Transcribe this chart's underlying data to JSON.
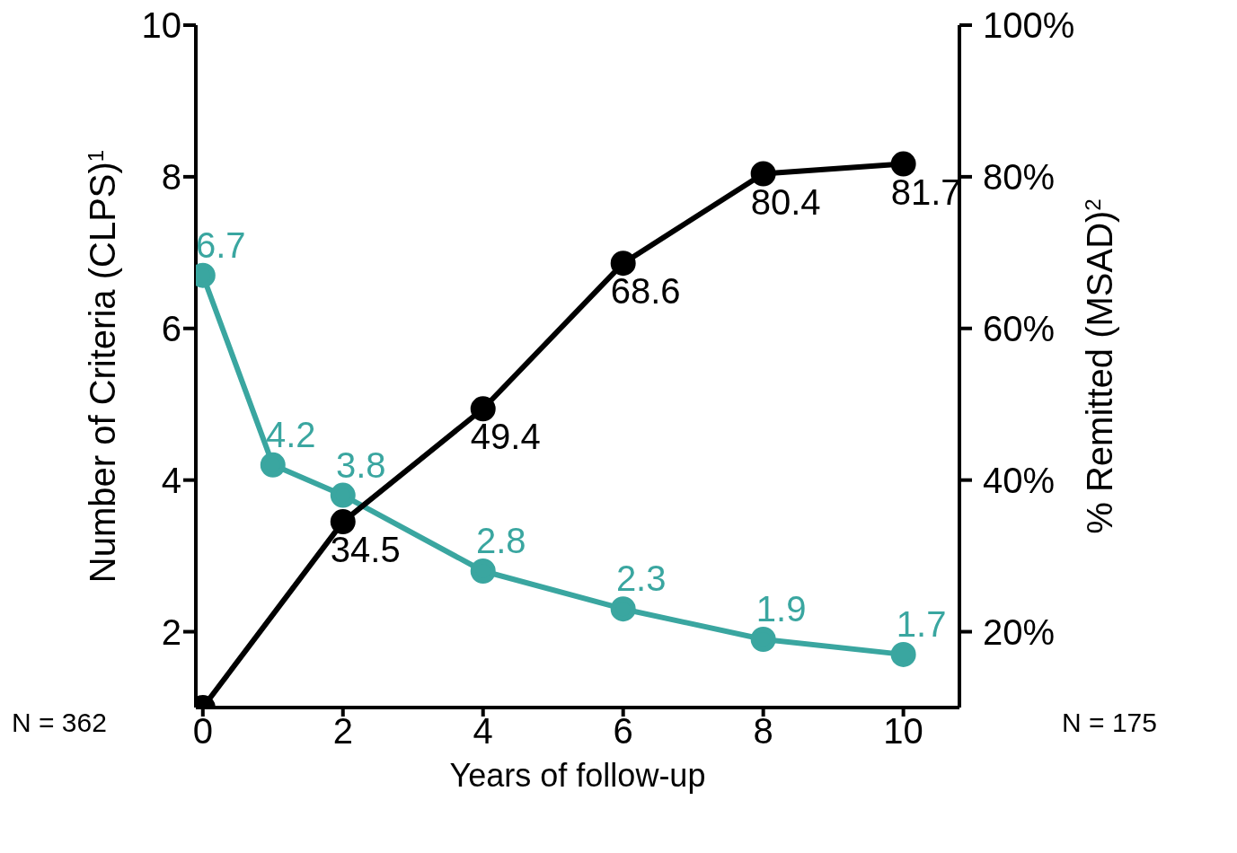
{
  "chart_data": {
    "type": "line",
    "xlabel": "Years of follow-up",
    "ylabel": "Number of Criteria (CLPS)$^{1}$",
    "y2label": "% Remitted (MSAD)$^{2}$",
    "x": [
      0,
      1,
      2,
      4,
      6,
      8,
      10
    ],
    "series": [
      {
        "color": "#3aa6a0",
        "values": [
          6.7,
          4.2,
          3.8,
          2.8,
          2.3,
          1.9,
          1.7
        ],
        "value_labels": [
          "6.7",
          "4.2",
          "3.8",
          "2.8",
          "2.3",
          "1.9",
          "1.7"
        ]
      },
      {
        "color": "#000000",
        "axis": "y2",
        "values": [
          10,
          null,
          34.5,
          49.4,
          68.6,
          80.4,
          81.7
        ],
        "value_labels": [
          null,
          null,
          "34.5",
          "49.4",
          "68.6",
          "80.4",
          "81.7"
        ]
      }
    ],
    "xlim": [
      -0.1,
      10.8
    ],
    "xticks": [
      0,
      2,
      4,
      6,
      8,
      10
    ],
    "ylim": [
      1,
      10
    ],
    "yticks": [
      2,
      4,
      6,
      8,
      10
    ],
    "y2lim": [
      10,
      100
    ],
    "y2ticks": [
      {
        "value": 20,
        "label": "20%"
      },
      {
        "value": 40,
        "label": "40%"
      },
      {
        "value": 60,
        "label": "60%"
      },
      {
        "value": 80,
        "label": "80%"
      },
      {
        "value": 100,
        "label": "100%"
      }
    ],
    "marker": "circle",
    "grid": false,
    "legend": false,
    "annotations": [
      "N = 362",
      "N = 175"
    ]
  }
}
